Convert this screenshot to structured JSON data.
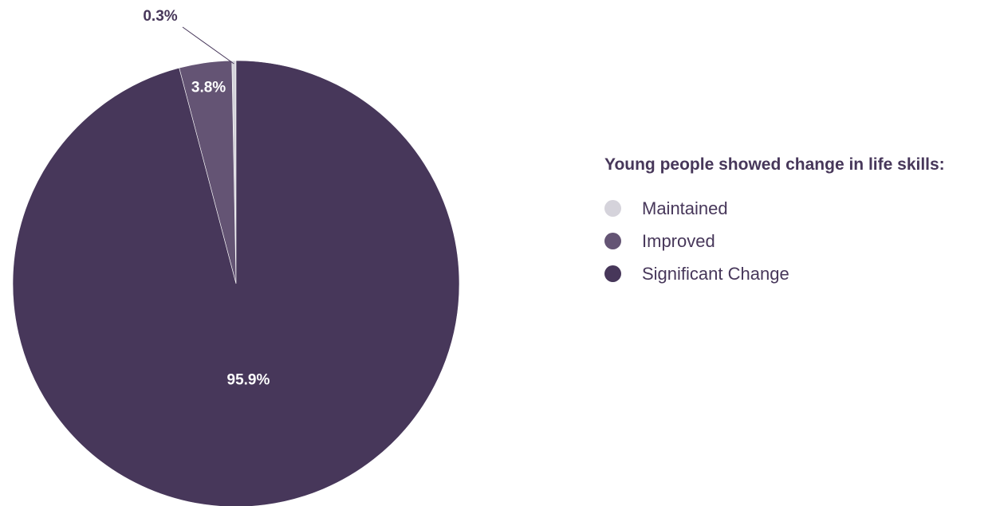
{
  "chart_data": {
    "type": "pie",
    "title": "",
    "legend_title": "Young people showed change in life skills:",
    "legend_position": "right",
    "slices": [
      {
        "name": "Maintained",
        "value": 0.3,
        "label": "0.3%",
        "color": "#d5d3db"
      },
      {
        "name": "Improved",
        "value": 3.8,
        "label": "3.8%",
        "color": "#645474"
      },
      {
        "name": "Significant Change",
        "value": 95.9,
        "label": "95.9%",
        "color": "#47375a"
      }
    ]
  },
  "legend": {
    "title": "Young people showed change in life skills:",
    "items": [
      {
        "label": "Maintained",
        "color": "#d5d3db"
      },
      {
        "label": "Improved",
        "color": "#645474"
      },
      {
        "label": "Significant Change",
        "color": "#47375a"
      }
    ]
  }
}
